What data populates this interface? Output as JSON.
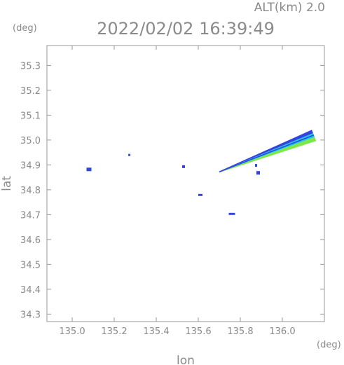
{
  "header": {
    "altitude_label": "ALT(km)  2.0",
    "timestamp": "2022/02/02  16:39:49"
  },
  "chart_data": {
    "type": "scatter",
    "title": "2022/02/02  16:39:49",
    "xlabel": "lon",
    "ylabel": "lat",
    "x_unit": "(deg)",
    "y_unit": "(deg)",
    "xlim": [
      134.88,
      136.2
    ],
    "ylim": [
      34.27,
      35.38
    ],
    "x_ticks": [
      "135.0",
      "135.2",
      "135.4",
      "135.6",
      "135.8",
      "136.0"
    ],
    "y_ticks": [
      "34.3",
      "34.4",
      "34.5",
      "34.6",
      "34.7",
      "34.8",
      "34.9",
      "35.0",
      "35.1",
      "35.2",
      "35.3"
    ],
    "grid": false,
    "echo_colors": {
      "low": "#3344dd",
      "mid": "#19c8e6",
      "high": "#7de84a"
    },
    "blobs": [
      {
        "lon": 135.08,
        "lat": 34.882,
        "color": "#3344dd"
      },
      {
        "lon": 135.272,
        "lat": 34.94,
        "color": "#3344dd"
      },
      {
        "lon": 135.53,
        "lat": 34.893,
        "color": "#3344dd"
      },
      {
        "lon": 135.61,
        "lat": 34.779,
        "color": "#3344dd"
      },
      {
        "lon": 135.76,
        "lat": 34.703,
        "color": "#3344dd"
      },
      {
        "lon": 135.875,
        "lat": 34.898,
        "color": "#3344dd"
      },
      {
        "lon": 135.885,
        "lat": 34.868,
        "color": "#3344dd"
      }
    ],
    "band": {
      "start": {
        "lon": 135.7,
        "lat": 34.872
      },
      "end": {
        "lon": 136.15,
        "lat": 35.02
      },
      "colors": [
        "#3344dd",
        "#19c8e6",
        "#7de84a"
      ]
    }
  }
}
